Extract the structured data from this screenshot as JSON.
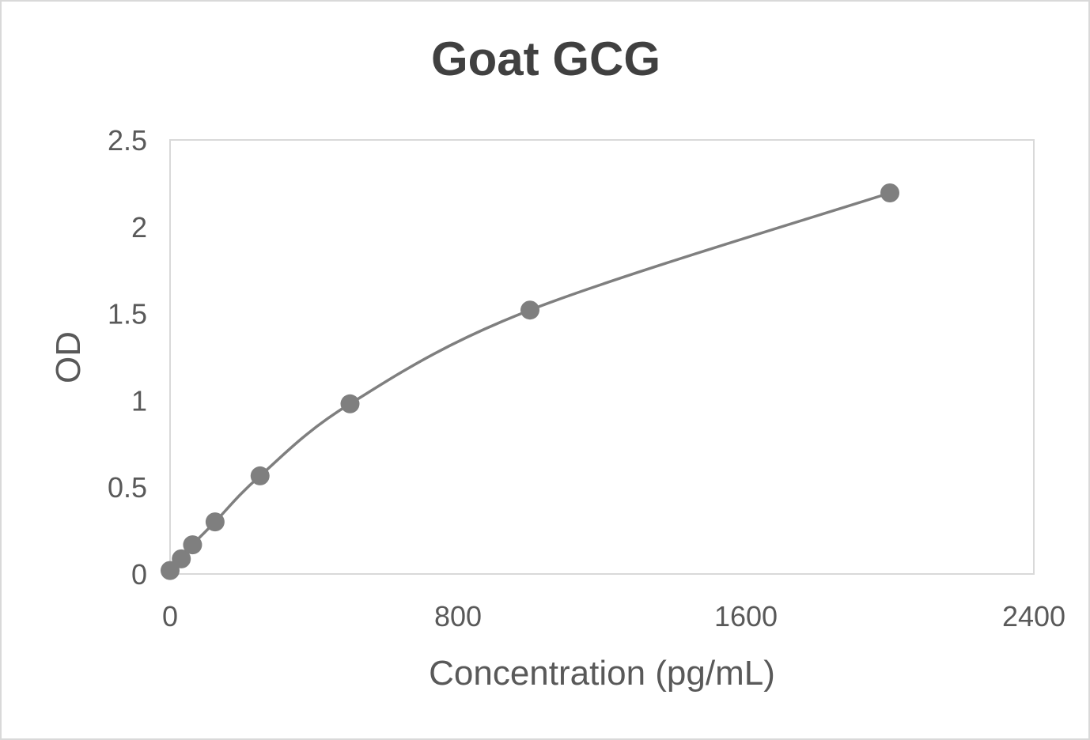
{
  "chart_data": {
    "type": "scatter",
    "title": "Goat GCG",
    "xlabel": "Concentration (pg/mL)",
    "ylabel": "OD",
    "xlim": [
      0,
      2400
    ],
    "ylim": [
      0,
      2.5
    ],
    "x_ticks": [
      "0",
      "800",
      "1600",
      "2400"
    ],
    "y_ticks": [
      "0",
      "0.5",
      "1",
      "1.5",
      "2",
      "2.5"
    ],
    "grid": false,
    "smoothed_line": true,
    "series": [
      {
        "x": [
          0,
          31.25,
          62.5,
          125,
          250,
          500,
          1000,
          2000
        ],
        "y": [
          0.02,
          0.087,
          0.168,
          0.3,
          0.565,
          0.98,
          1.52,
          2.195
        ],
        "color": "#7f7f7f"
      }
    ]
  }
}
